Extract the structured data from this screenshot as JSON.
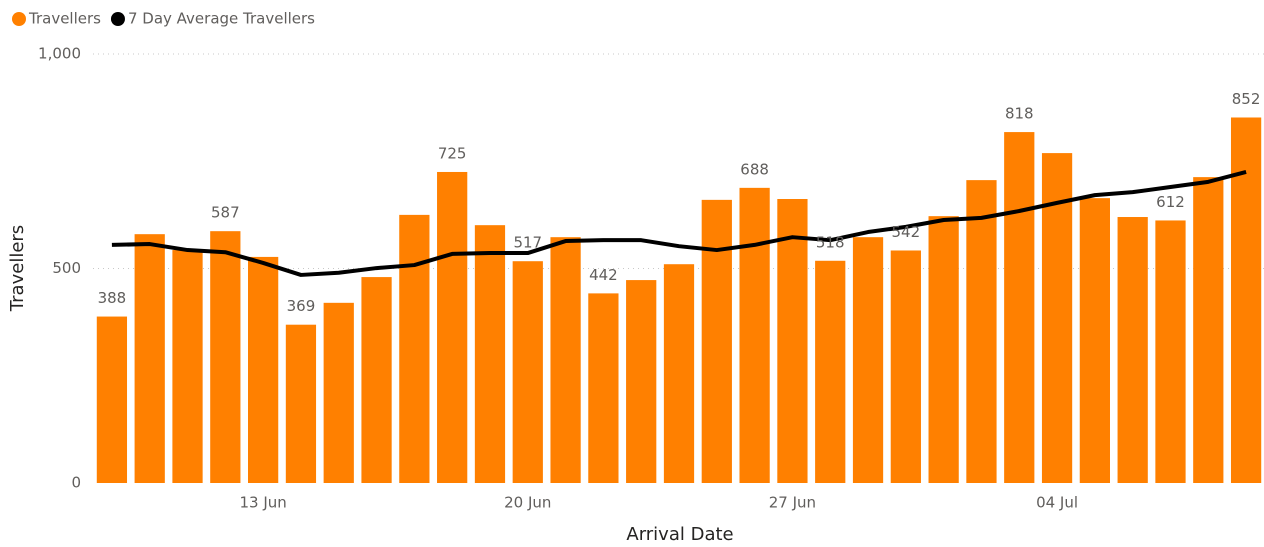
{
  "chart_data": {
    "type": "bar_line",
    "xlabel": "Arrival Date",
    "ylabel": "Travellers",
    "categories": [
      null,
      null,
      null,
      null,
      "13 Jun",
      null,
      null,
      null,
      null,
      null,
      null,
      "20 Jun",
      null,
      null,
      null,
      null,
      null,
      null,
      "27 Jun",
      null,
      null,
      null,
      null,
      null,
      null,
      "04 Jul",
      null,
      null,
      null,
      null,
      null
    ],
    "series": [
      {
        "name": "Travellers",
        "type": "bar",
        "color": "#ff8000",
        "values": [
          388,
          580,
          543,
          587,
          527,
          369,
          420,
          480,
          625,
          725,
          601,
          517,
          573,
          442,
          473,
          510,
          660,
          688,
          662,
          518,
          573,
          542,
          622,
          706,
          818,
          769,
          664,
          620,
          612,
          713,
          852
        ],
        "value_labels": [
          "388",
          null,
          null,
          "587",
          null,
          "369",
          null,
          null,
          null,
          "725",
          null,
          "517",
          null,
          "442",
          null,
          null,
          null,
          "688",
          null,
          "518",
          null,
          "542",
          null,
          null,
          "818",
          null,
          null,
          null,
          "612",
          null,
          "852"
        ]
      },
      {
        "name": "7 Day Average Travellers",
        "type": "line",
        "color": "#000000",
        "values": [
          555,
          557,
          543,
          538,
          513,
          485,
          490,
          501,
          508,
          534,
          536,
          536,
          564,
          566,
          566,
          552,
          543,
          555,
          573,
          566,
          585,
          597,
          613,
          618,
          634,
          653,
          671,
          678,
          690,
          702,
          725
        ]
      }
    ],
    "ylim": [
      0,
      1000
    ],
    "yticks": [
      0,
      500,
      {
        "value": 1000,
        "label": "1,000"
      }
    ],
    "grid": true
  }
}
